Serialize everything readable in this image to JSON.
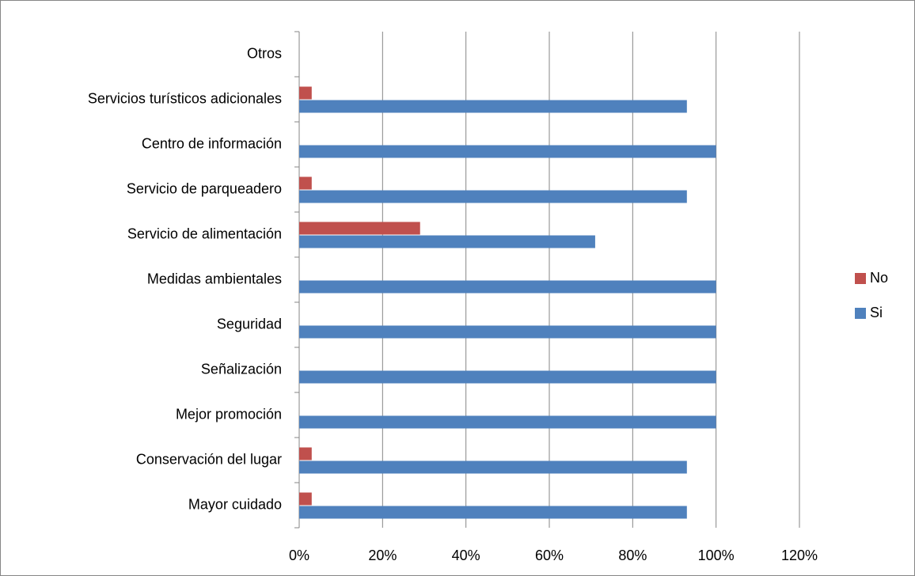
{
  "chart_data": {
    "type": "hbar",
    "categories": [
      "Mayor cuidado",
      "Conservación del lugar",
      "Mejor promoción",
      "Señalización",
      "Seguridad",
      "Medidas ambientales",
      "Servicio de alimentación",
      "Servicio de parqueadero",
      "Centro de información",
      "Servicios turísticos adicionales",
      "Otros"
    ],
    "series": [
      {
        "name": "No",
        "color": "#c0504d",
        "values": [
          3,
          3,
          0,
          0,
          0,
          0,
          29,
          3,
          0,
          3,
          0
        ]
      },
      {
        "name": "Si",
        "color": "#4f81bd",
        "values": [
          93,
          93,
          100,
          100,
          100,
          100,
          71,
          93,
          100,
          93,
          0
        ]
      }
    ],
    "xlim": [
      0,
      120
    ],
    "xticks": [
      {
        "value": 0,
        "label": "0%"
      },
      {
        "value": 20,
        "label": "20%"
      },
      {
        "value": 40,
        "label": "40%"
      },
      {
        "value": 60,
        "label": "60%"
      },
      {
        "value": 80,
        "label": "80%"
      },
      {
        "value": 100,
        "label": "100%"
      },
      {
        "value": 120,
        "label": "120%"
      }
    ],
    "grid": true,
    "legend": "right"
  }
}
